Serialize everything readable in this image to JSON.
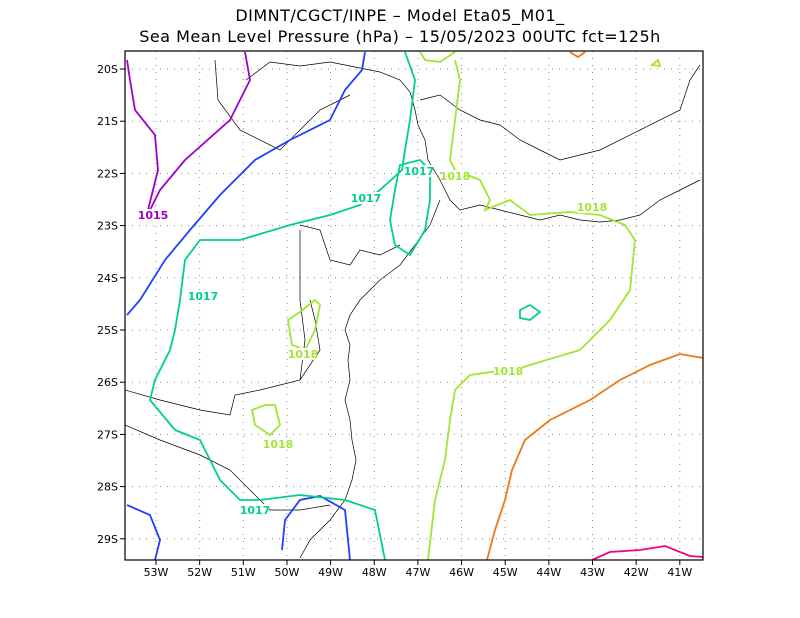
{
  "title_line1": "DIMNT/CGCT/INPE –  Model Eta05_M01_",
  "title_line2": "Sea Mean Level Pressure (hPa) – 15/05/2023 00UTC fct=125h",
  "lat_ticks": [
    "20S",
    "21S",
    "22S",
    "23S",
    "24S",
    "25S",
    "26S",
    "27S",
    "28S",
    "29S"
  ],
  "lon_ticks": [
    "53W",
    "52W",
    "51W",
    "50W",
    "49W",
    "48W",
    "47W",
    "46W",
    "45W",
    "44W",
    "43W",
    "42W",
    "41W"
  ],
  "contour_labels": [
    "1015",
    "1017",
    "1017",
    "1017",
    "1017",
    "1018",
    "1018",
    "1018",
    "1018",
    "1018"
  ],
  "colors": {
    "c1014": "#a000c8",
    "c1016": "#2040ff",
    "c1017": "#00d08c",
    "c1018": "#a0e632",
    "c1019": "#f07814",
    "c1020": "#f00082"
  }
}
